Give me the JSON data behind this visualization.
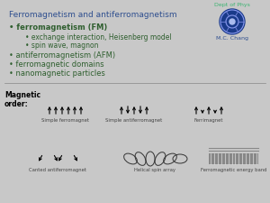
{
  "title": "Ferromagnetism and antiferromagnetism",
  "title_color": "#2F4F8F",
  "bg_color": "#C8C8C8",
  "dept_text": "Dept of Phys",
  "author_text": "M.C. Chang",
  "bullet_color": "#2F5F2F",
  "bullet1": "ferromagnetism (FM)",
  "sub1a": "exchange interaction, Heisenberg model",
  "sub1b": "spin wave, magnon",
  "bullet2": "antiferromagnetism (AFM)",
  "bullet3": "ferromagnetic domains",
  "bullet4": "nanomagnetic particles",
  "mag_label": "Magnetic\norder:",
  "sub_labels": [
    "Simple ferromagnet",
    "Simple antiferromagnet",
    "Ferrimagnet",
    "Canted antiferromagnet",
    "Helical spin array",
    "Ferromagnetic energy band"
  ],
  "logo_bg": "#1A3A8A",
  "logo_ring": "#6688FF",
  "dept_color": "#3CB371",
  "author_color": "#2F4F8F"
}
